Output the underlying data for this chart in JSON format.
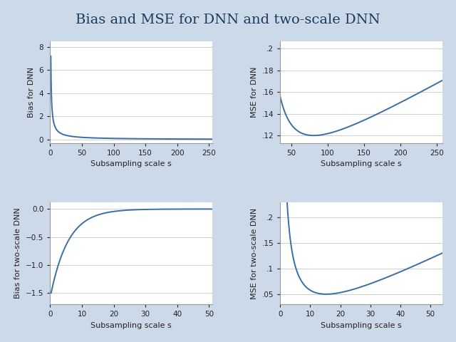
{
  "title": "Bias and MSE for DNN and two-scale DNN",
  "title_fontsize": 14,
  "title_color": "#1a3a5c",
  "bg_color": "#ccd9e8",
  "plot_bg_color": "#ffffff",
  "line_color": "#3a6ea5",
  "line_width": 1.4,
  "subplot_layouts": {
    "top_left": {
      "ylabel": "Bias for DNN",
      "xlabel": "Subsampling scale s",
      "xlim": [
        0,
        255
      ],
      "ylim": [
        -0.3,
        8.5
      ],
      "xticks": [
        0,
        50,
        100,
        150,
        200,
        250
      ],
      "yticks": [
        0,
        2,
        4,
        6,
        8
      ]
    },
    "top_right": {
      "ylabel": "MSE for DNN",
      "xlabel": "Subsampling scale s",
      "xlim": [
        35,
        258
      ],
      "ylim": [
        0.113,
        0.207
      ],
      "xticks": [
        50,
        100,
        150,
        200,
        250
      ],
      "yticks": [
        0.12,
        0.14,
        0.16,
        0.18,
        0.2
      ],
      "ytick_labels": [
        ".12",
        ".14",
        ".16",
        ".18",
        ".2"
      ]
    },
    "bottom_left": {
      "ylabel": "Bias for two-scale DNN",
      "xlabel": "Subsampling scale s",
      "xlim": [
        0,
        51
      ],
      "ylim": [
        -1.7,
        0.12
      ],
      "xticks": [
        0,
        10,
        20,
        30,
        40,
        50
      ],
      "yticks": [
        -1.5,
        -1.0,
        -0.5,
        0.0
      ]
    },
    "bottom_right": {
      "ylabel": "MSE for two-scale DNN",
      "xlabel": "Subsampling scale s",
      "xlim": [
        0,
        54
      ],
      "ylim": [
        0.03,
        0.23
      ],
      "xticks": [
        0,
        10,
        20,
        30,
        40,
        50
      ],
      "yticks": [
        0.05,
        0.1,
        0.15,
        0.2
      ],
      "ytick_labels": [
        ".05",
        ".1",
        ".15",
        ".2"
      ]
    }
  }
}
